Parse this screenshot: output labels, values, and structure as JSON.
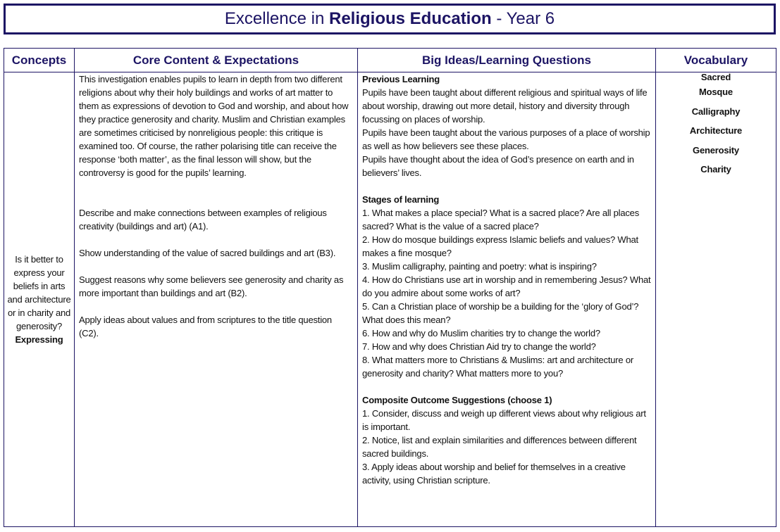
{
  "title": {
    "prefix": "Excellence in ",
    "bold": "Religious Education",
    "suffix": " - Year 6"
  },
  "headers": [
    "Concepts",
    "Core Content & Expectations",
    "Big Ideas/Learning Questions",
    "Vocabulary"
  ],
  "concept": {
    "question": "Is it better to express your beliefs in arts and architecture or in charity and generosity?",
    "label": "Expressing"
  },
  "core_content": {
    "intro": "This investigation enables pupils to learn in depth from two different religions about why their holy buildings and works of art matter to them as expressions of devotion to God and worship, and about how they practice generosity and charity. Muslim and Christian examples are sometimes criticised by nonreligious people: this critique is examined too. Of course, the rather polarising title can receive the response ‘both matter’, as the final lesson will show, but the controversy is good for the pupils’ learning.",
    "expectations": [
      "Describe and make connections between examples of religious creativity (buildings and art) (A1).",
      "Show understanding of the value of sacred buildings and art (B3).",
      "Suggest reasons why some believers see generosity and charity as more important than buildings and art (B2).",
      "Apply ideas about values and from scriptures to the title question (C2)."
    ]
  },
  "big_ideas": {
    "previous_title": "Previous Learning",
    "previous": [
      "Pupils have been taught about different religious and spiritual ways of life about worship, drawing out more detail, history and diversity through focussing on places of worship.",
      "Pupils have been taught about the various purposes of a place of worship as well as how believers see these places.",
      "Pupils have thought about the idea of God’s presence on earth and in believers’ lives."
    ],
    "stages_title": "Stages of learning",
    "stages": [
      "1. What makes a place special? What is a sacred place? Are all places sacred? What is the value of a sacred place?",
      "2. How do mosque buildings express Islamic beliefs and values? What makes a fine mosque?",
      "3. Muslim calligraphy, painting and poetry: what is inspiring?",
      "4. How do Christians use art in worship and in remembering Jesus? What do you admire about some works of art?",
      "5. Can a Christian place of worship be a building for the ‘glory of God’? What does this mean?",
      "6. How and why do Muslim charities try to change the world?",
      "7. How and why does Christian Aid try to change the world?",
      "8. What matters more to Christians & Muslims: art and architecture or generosity and charity? What matters more to you?"
    ],
    "outcome_title": "Composite Outcome Suggestions (choose 1)",
    "outcomes": [
      "1. Consider, discuss and weigh up different views about why religious art is important.",
      "2. Notice, list and explain similarities and differences between different sacred buildings.",
      "3. Apply ideas about worship and belief for themselves in a creative activity, using Christian scripture."
    ]
  },
  "vocabulary": [
    "Sacred",
    "Mosque",
    "Calligraphy",
    "Architecture",
    "Generosity",
    "Charity"
  ]
}
